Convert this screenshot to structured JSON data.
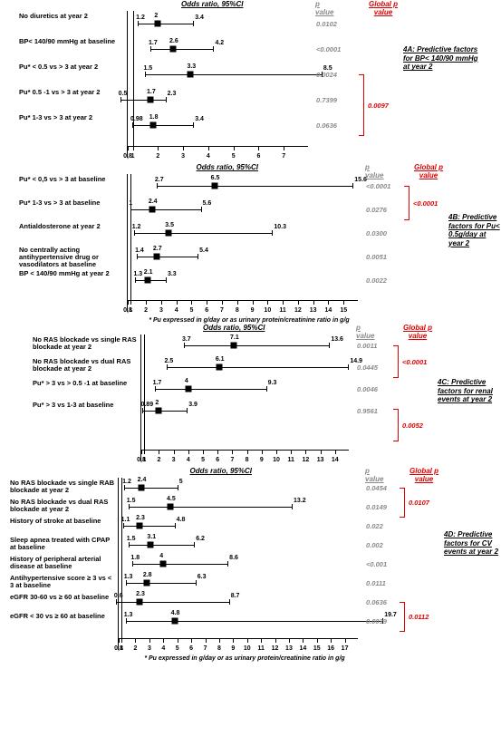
{
  "footnote": "* Pu expressed in g/day or as urinary protein/creatinine ratio in g/g",
  "header": {
    "odds": "Odds ratio, 95%CI",
    "pvalue": "p value",
    "global": "Global p value"
  },
  "panelA": {
    "side_title": "4A: Predictive factors for BP< 140/90 mmHg at year 2",
    "xmin": 0.8,
    "xmax": 8,
    "ticks": [
      1,
      2,
      3,
      4,
      5,
      6,
      7
    ],
    "rows": [
      {
        "label": "No diuretics at year 2",
        "low": 1.2,
        "mid": 2.0,
        "high": 3.4,
        "p": "0.0102"
      },
      {
        "label": "BP< 140/90 mmHg at baseline",
        "low": 1.7,
        "mid": 2.6,
        "high": 4.2,
        "p": "<0.0001"
      },
      {
        "label": "Pu* < 0.5  vs > 3 at year 2",
        "low": 1.5,
        "mid": 3.3,
        "high": 8.5,
        "p": "0.0024"
      },
      {
        "label": "Pu* 0.5 -1  vs > 3 at year 2",
        "low": 0.5,
        "mid": 1.7,
        "high": 2.3,
        "p": "0.7399"
      },
      {
        "label": "Pu* 1-3  vs > 3 at year 2",
        "low": 0.98,
        "mid": 1.8,
        "high": 3.4,
        "p": "0.0636"
      }
    ],
    "group": {
      "from": 2,
      "to": 4,
      "g": "0.0097"
    }
  },
  "panelB": {
    "side_title": "4B: Predictive factors for Pu< 0.5g/day at year 2",
    "xmin": 0.8,
    "xmax": 16,
    "ticks": [
      1,
      2,
      3,
      4,
      5,
      6,
      7,
      8,
      9,
      10,
      11,
      12,
      13,
      14,
      15
    ],
    "rows": [
      {
        "label": "Pu*  < 0,5 vs > 3 at baseline",
        "low": 2.7,
        "mid": 6.5,
        "high": 15.6,
        "p": "<0.0001"
      },
      {
        "label": "Pu* 1-3 vs > 3 at baseline",
        "low": 1.0,
        "mid": 2.4,
        "high": 5.6,
        "p": "0.0276"
      },
      {
        "label": "Antialdosterone at year 2",
        "low": 1.2,
        "mid": 3.5,
        "high": 10.3,
        "p": "0.0300"
      },
      {
        "label": "No centrally acting antihypertensive drug or vasodilators at baseline",
        "low": 1.4,
        "mid": 2.7,
        "high": 5.4,
        "p": "0.0051"
      },
      {
        "label": "BP < 140/90 mmHg at year 2",
        "low": 1.3,
        "mid": 2.1,
        "high": 3.3,
        "p": "0.0022"
      }
    ],
    "group": {
      "from": 0,
      "to": 1,
      "g": "<0.0001"
    }
  },
  "panelC": {
    "side_title": "4C: Predictive factors for renal events at year 2",
    "xmin": 0.8,
    "xmax": 15,
    "ticks": [
      1,
      2,
      3,
      4,
      5,
      6,
      7,
      8,
      9,
      10,
      11,
      12,
      13,
      14
    ],
    "rows": [
      {
        "label": "No RAS blockade vs single RAS blockade at year 2",
        "low": 3.7,
        "mid": 7.1,
        "high": 13.6,
        "p": "0.0011"
      },
      {
        "label": "No RAS blockade vs dual RAS blockade at year 2",
        "low": 2.5,
        "mid": 6.1,
        "high": 14.9,
        "p": "0.0445"
      },
      {
        "label": "Pu* > 3 vs > 0.5 -1 at baseline",
        "low": 1.7,
        "mid": 4.0,
        "high": 9.3,
        "p": "0.0046"
      },
      {
        "label": "Pu* > 3 vs 1-3  at baseline",
        "low": 0.89,
        "mid": 2.0,
        "high": 3.9,
        "p": "0.9561"
      }
    ],
    "groups": [
      {
        "from": 0,
        "to": 1,
        "g": "<0.0001"
      },
      {
        "from": 2,
        "to": 3,
        "g": "0.0052"
      }
    ],
    "gap_after": 1
  },
  "panelD": {
    "side_title": "4D: Predictive factors for CV events at year 2",
    "xmin": 0.8,
    "xmax": 18,
    "ticks": [
      1,
      2,
      3,
      4,
      5,
      6,
      7,
      8,
      9,
      10,
      11,
      12,
      13,
      14,
      15,
      16,
      17
    ],
    "rows": [
      {
        "label": "No RAS blockade vs single RAB blockade at year 2",
        "low": 1.2,
        "mid": 2.4,
        "high": 5.0,
        "p": "0.0454"
      },
      {
        "label": "No RAS blockade vs dual RAS blockade at year 2",
        "low": 1.5,
        "mid": 4.5,
        "high": 13.2,
        "p": "0.0149"
      },
      {
        "label": "History of stroke at baseline",
        "low": 1.1,
        "mid": 2.3,
        "high": 4.8,
        "p": "0.022"
      },
      {
        "label": "Sleep apnea treated with CPAP at baseline",
        "low": 1.5,
        "mid": 3.1,
        "high": 6.2,
        "p": "0.002"
      },
      {
        "label": "History of peripheral arterial disease at baseline",
        "low": 1.8,
        "mid": 4.0,
        "high": 8.6,
        "p": "<0.001"
      },
      {
        "label": "Antihypertensive score ≥ 3 vs < 3 at baseline",
        "low": 1.3,
        "mid": 2.8,
        "high": 6.3,
        "p": "0.0111"
      },
      {
        "label": "eGFR 30-60 vs ≥ 60 at baseline",
        "low": 0.6,
        "mid": 2.3,
        "high": 8.7,
        "p": "0.0636"
      },
      {
        "label": "eGFR < 30 vs ≥ 60 at baseline",
        "low": 1.3,
        "mid": 4.8,
        "high": 19.7,
        "p": "0.0039"
      }
    ],
    "groups": [
      {
        "from": 0,
        "to": 1,
        "g": "0.0107"
      },
      {
        "from": 6,
        "to": 7,
        "g": "0.0112"
      }
    ]
  }
}
